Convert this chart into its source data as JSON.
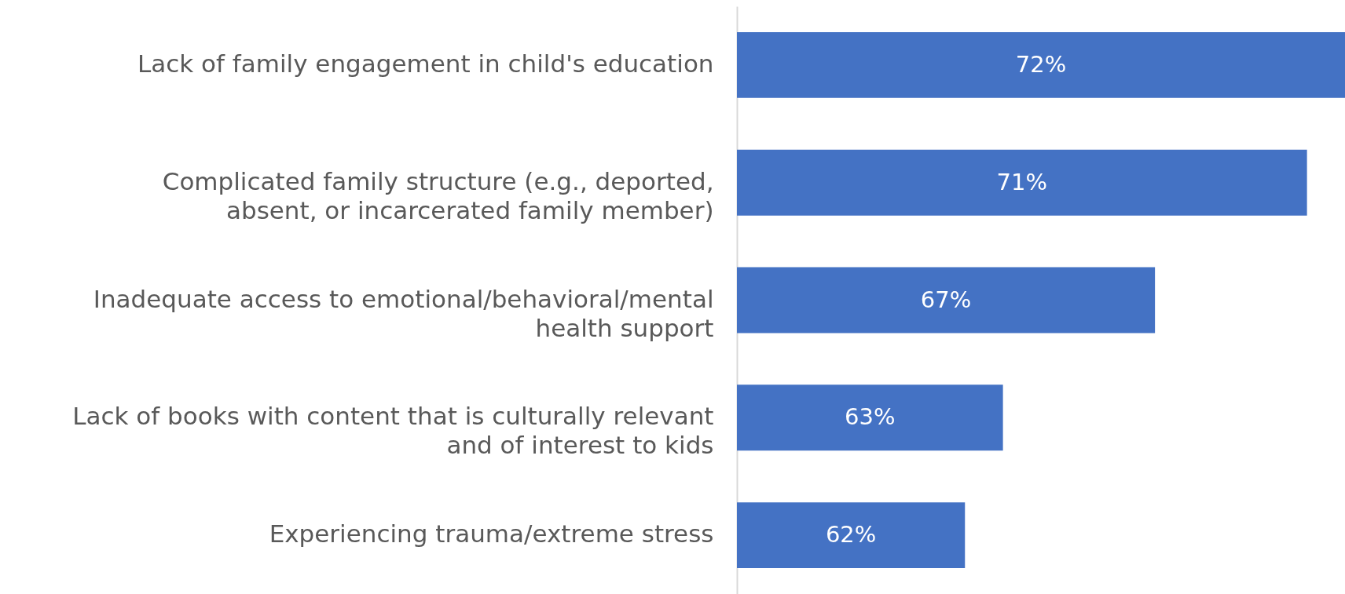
{
  "chart_data": {
    "type": "bar",
    "orientation": "horizontal",
    "categories": [
      "Lack of family engagement in child's education",
      "Complicated family structure (e.g., deported,\nabsent, or incarcerated family member)",
      "Inadequate access to emotional/behavioral/mental\nhealth support",
      "Lack of books with content that is culturally relevant\nand of interest to kids",
      "Experiencing trauma/extreme stress"
    ],
    "values": [
      72,
      71,
      67,
      63,
      62
    ],
    "value_labels": [
      "72%",
      "71%",
      "67%",
      "63%",
      "62%"
    ],
    "color": "#4472c4",
    "xlim": [
      56,
      72
    ],
    "tick_labels": "y"
  }
}
